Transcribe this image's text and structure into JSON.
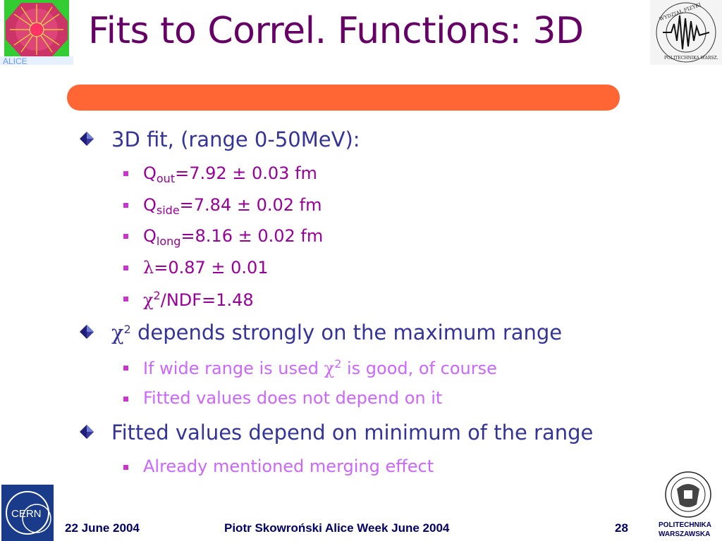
{
  "slide": {
    "title": "Fits to Correl. Functions: 3D",
    "accent_bar_color": "#ff6633",
    "title_color": "#660066"
  },
  "logos": {
    "top_left": "alice-logo",
    "top_right": "wydzial-fizyki-logo",
    "top_right_text": "WYDZIAŁ FIZYKI POLITECHNIKA WARSZAWSKA",
    "bottom_left": "cern-logo",
    "bottom_left_text": "CERN",
    "bottom_right": "politechnika-warszawska-logo",
    "bottom_right_line1": "POLITECHNIKA",
    "bottom_right_line2": "WARSZAWSKA"
  },
  "bullets": [
    {
      "text": "3D fit, (range 0-50MeV):",
      "sub": [
        {
          "symbol": "Q",
          "subscript": "out",
          "text": "=7.92 ± 0.03 fm"
        },
        {
          "symbol": "Q",
          "subscript": "side",
          "text": "=7.84 ± 0.02 fm"
        },
        {
          "symbol": "Q",
          "subscript": "long",
          "text": "=8.16 ± 0.02 fm"
        },
        {
          "symbol": "λ",
          "text": "=0.87 ± 0.01"
        },
        {
          "symbol": "χ",
          "superscript": "2",
          "text": "/NDF=1.48"
        }
      ]
    },
    {
      "symbol": "χ",
      "superscript": "2",
      "text": " depends strongly on the maximum range",
      "sub": [
        {
          "text_before": "If wide range is used ",
          "symbol": "χ",
          "superscript": "2",
          "text_after": " is good, of course"
        },
        {
          "text": "Fitted values does not depend on it"
        }
      ]
    },
    {
      "text": "Fitted values depend on minimum of the range",
      "sub": [
        {
          "text": "Already mentioned merging effect"
        }
      ]
    }
  ],
  "footer": {
    "date": "22 June 2004",
    "center": "Piotr Skowroński  Alice Week June  2004",
    "page": "28"
  }
}
